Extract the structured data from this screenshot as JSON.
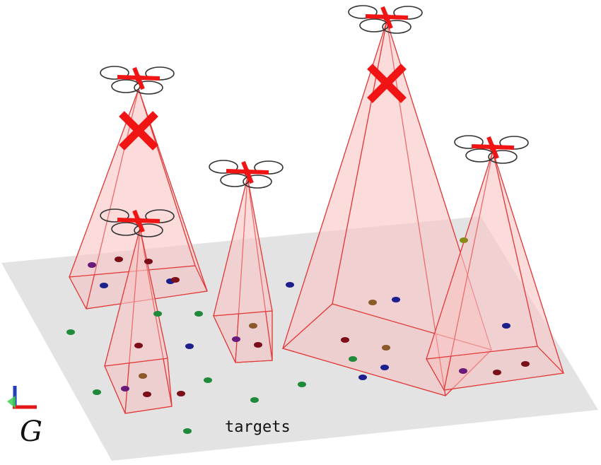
{
  "labels": {
    "targets": "targets",
    "frame": "G"
  },
  "colors": {
    "ground": "#e3e3e3",
    "cone_stroke": "#e23a3a",
    "cone_fill": "#f9c6c6",
    "drone_arm": "#f01414",
    "failure_cross": "#f01414",
    "target_green": "#1f8a3a",
    "target_navy": "#1c1f8c",
    "target_maroon": "#7a0f1a",
    "target_brown": "#8b5a2b",
    "target_purple": "#6a1a7a",
    "target_olive": "#8a8a1a"
  },
  "drones": [
    {
      "id": "drone-1",
      "failed": true
    },
    {
      "id": "drone-2",
      "failed": false
    },
    {
      "id": "drone-3",
      "failed": false
    },
    {
      "id": "drone-4",
      "failed": true
    },
    {
      "id": "drone-5",
      "failed": false
    }
  ],
  "icons": {
    "frame_axes": "coordinate-axes-icon",
    "drone": "quadcopter-icon",
    "failure": "x-mark-icon"
  }
}
